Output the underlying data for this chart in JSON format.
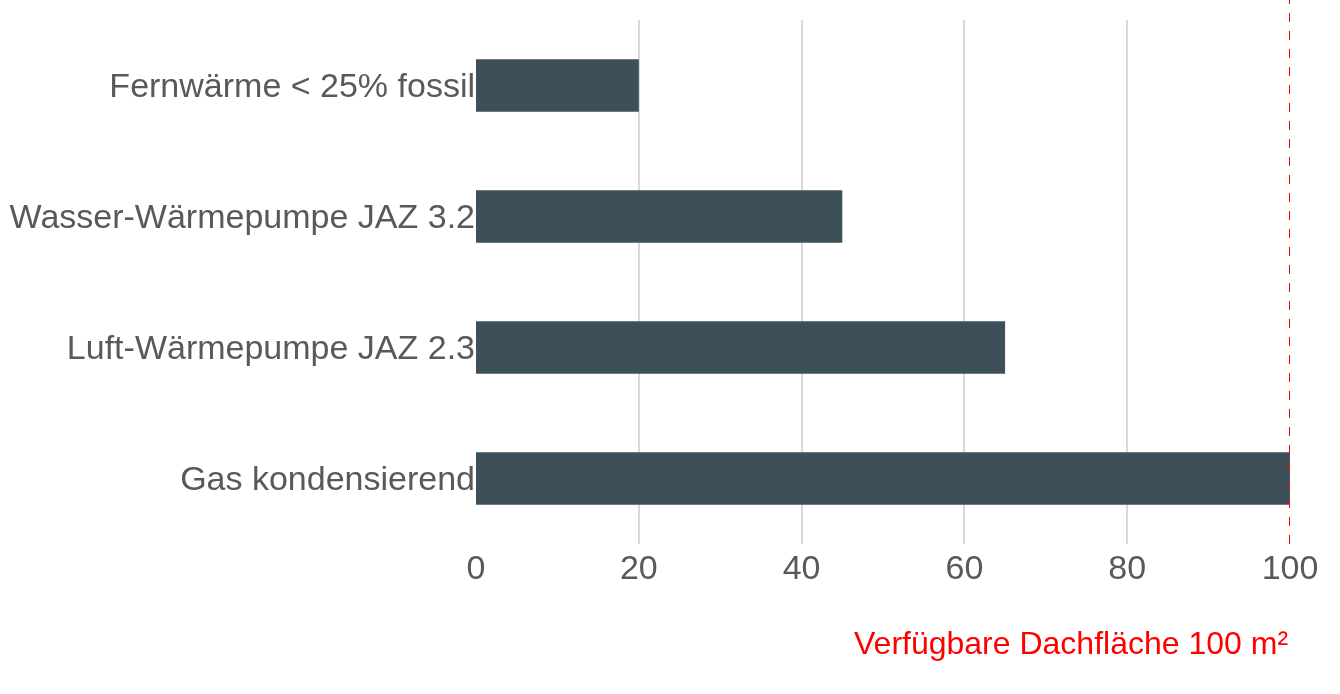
{
  "chart_data": {
    "type": "bar",
    "orientation": "horizontal",
    "categories": [
      "Fernwärme < 25% fossil",
      "Wasser-Wärmepumpe JAZ 3.2",
      "Luft-Wärmepumpe JAZ 2.3",
      "Gas kondensierend"
    ],
    "values": [
      20,
      45,
      65,
      100
    ],
    "color": "#3d4f59",
    "xlim": [
      0,
      100
    ],
    "xticks": [
      0,
      20,
      40,
      60,
      80,
      100
    ],
    "grid": "x",
    "ref_lines": [
      {
        "axis": "x",
        "value": 100,
        "label": "Verfügbare Dachfläche 100 m²",
        "color": "#ff0000",
        "line_style": "dashed"
      }
    ]
  }
}
